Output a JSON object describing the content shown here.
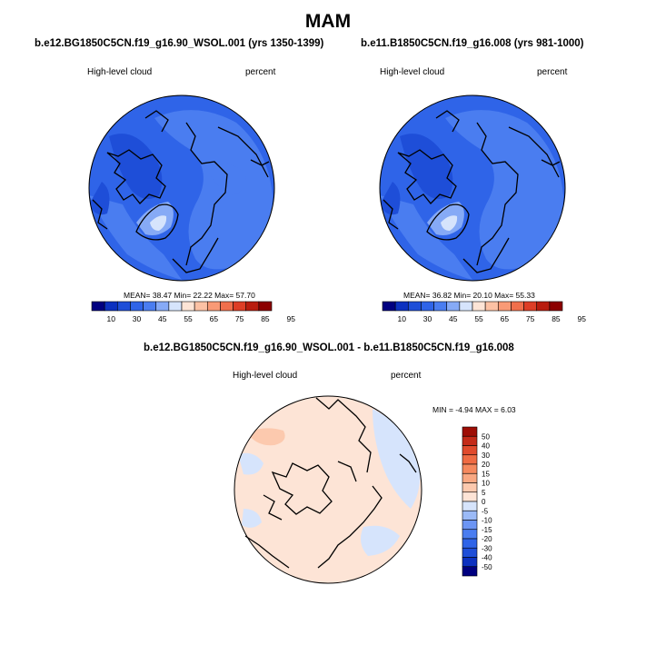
{
  "figure": {
    "season": "MAM",
    "field_label": "High-level cloud",
    "units": "percent"
  },
  "colors": {
    "abs_scale": [
      "#000080",
      "#0c31c0",
      "#1e4ed8",
      "#2f64e8",
      "#4a7df0",
      "#86aaf6",
      "#d6e4fc",
      "#fde4d6",
      "#fcc1a4",
      "#f99a76",
      "#f06f4c",
      "#dd3e26",
      "#b81c0e",
      "#8c0000"
    ],
    "diff_scale": [
      "#000080",
      "#0c31c0",
      "#1e4ed8",
      "#2f64e8",
      "#4a7df0",
      "#6c95f4",
      "#9bbaf7",
      "#d6e4fc",
      "#fde4d6",
      "#fcc9ae",
      "#f9a882",
      "#f5895e",
      "#ef6b43",
      "#e04a2c",
      "#c42a18",
      "#9e0d05"
    ],
    "land_outline": "#000000",
    "map_border": "#000000"
  },
  "chart_data": [
    {
      "type": "heatmap",
      "projection": "north-polar-stereographic",
      "title": "b.e12.BG1850C5CN.f19_g16.90_WSOL.001 (yrs 1350-1399)",
      "left_label": "High-level cloud",
      "right_label": "percent",
      "stats": {
        "mean": "38.47",
        "min": "22.22",
        "max": "57.70"
      },
      "stats_text": "MEAN=  38.47   Min=  22.22   Max=  57.70",
      "colorbar_levels": [
        "10",
        "30",
        "45",
        "55",
        "65",
        "75",
        "85",
        "95"
      ],
      "dominant_value_range": [
        30,
        45
      ]
    },
    {
      "type": "heatmap",
      "projection": "north-polar-stereographic",
      "title": "b.e11.B1850C5CN.f19_g16.008 (yrs 981-1000)",
      "left_label": "High-level cloud",
      "right_label": "percent",
      "stats": {
        "mean": "36.82",
        "min": "20.10",
        "max": "55.33"
      },
      "stats_text": "MEAN=  36.82   Min=  20.10   Max=  55.33",
      "colorbar_levels": [
        "10",
        "30",
        "45",
        "55",
        "65",
        "75",
        "85",
        "95"
      ],
      "dominant_value_range": [
        30,
        45
      ]
    },
    {
      "type": "heatmap",
      "projection": "north-polar-stereographic",
      "title": "b.e12.BG1850C5CN.f19_g16.90_WSOL.001 - b.e11.B1850C5CN.f19_g16.008",
      "left_label": "High-level cloud",
      "right_label": "percent",
      "stats": {
        "min": "-4.94",
        "max": "6.03"
      },
      "stats_text": "MIN =  -4.94  MAX =   6.03",
      "colorbar_levels": [
        "50",
        "40",
        "30",
        "20",
        "15",
        "10",
        "5",
        "0",
        "-5",
        "-10",
        "-15",
        "-20",
        "-30",
        "-40",
        "-50"
      ],
      "dominant_value_range": [
        0,
        5
      ]
    }
  ]
}
